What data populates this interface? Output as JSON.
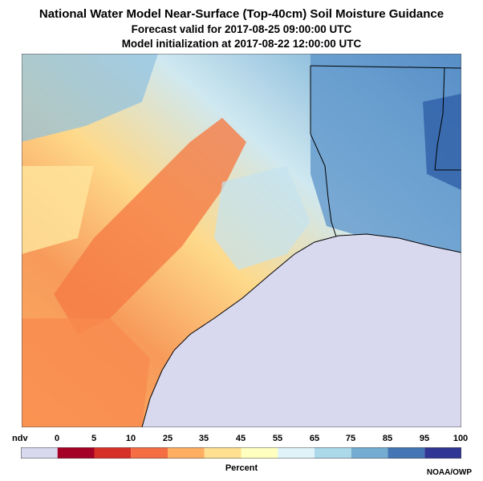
{
  "header": {
    "title": "National Water Model Near-Surface (Top-40cm) Soil Moisture Guidance",
    "forecast_valid": "Forecast valid for 2017-08-25 09:00:00 UTC",
    "initialization": "Model initialization at 2017-08-22 12:00:00 UTC"
  },
  "legend": {
    "ndv_label": "ndv",
    "ticks": [
      "0",
      "5",
      "10",
      "25",
      "35",
      "45",
      "55",
      "65",
      "75",
      "85",
      "95",
      "100"
    ],
    "colors": [
      "#d8d8ee",
      "#a50026",
      "#d73027",
      "#f46d43",
      "#fdae61",
      "#fee090",
      "#ffffbf",
      "#e0f3f8",
      "#abd9e9",
      "#74add1",
      "#4575b4",
      "#313695"
    ],
    "unit_label": "Percent"
  },
  "credit": "NOAA/OWP",
  "map": {
    "water_color": "#d8d8ee",
    "boundary_color": "#000000"
  }
}
